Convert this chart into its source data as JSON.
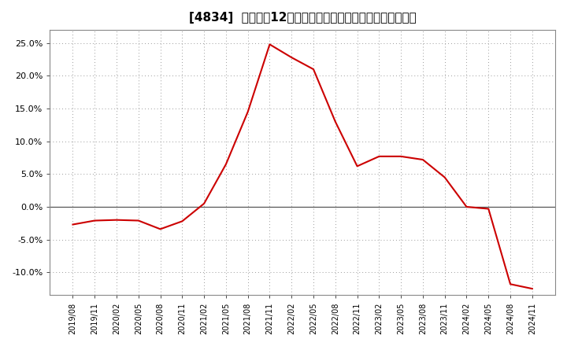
{
  "title": "[4834]  売上高の12か月移動合計の対前年同期増減率の推移",
  "line_color": "#cc0000",
  "background_color": "#ffffff",
  "plot_bg_color": "#ffffff",
  "grid_color": "#999999",
  "zero_line_color": "#555555",
  "ylim": [
    -0.135,
    0.27
  ],
  "yticks": [
    -0.1,
    -0.05,
    0.0,
    0.05,
    0.1,
    0.15,
    0.2,
    0.25
  ],
  "dates": [
    "2019/08",
    "2019/11",
    "2020/02",
    "2020/05",
    "2020/08",
    "2020/11",
    "2021/02",
    "2021/05",
    "2021/08",
    "2021/11",
    "2022/02",
    "2022/05",
    "2022/08",
    "2022/11",
    "2023/02",
    "2023/05",
    "2023/08",
    "2023/11",
    "2024/02",
    "2024/05",
    "2024/08",
    "2024/11"
  ],
  "values": [
    -0.027,
    -0.021,
    -0.02,
    -0.021,
    -0.034,
    -0.022,
    0.005,
    0.065,
    0.145,
    0.248,
    0.228,
    0.21,
    0.13,
    0.062,
    0.077,
    0.077,
    0.072,
    0.045,
    0.0,
    -0.003,
    -0.118,
    -0.125
  ],
  "title_fontsize": 11,
  "tick_fontsize": 8,
  "xtick_fontsize": 7
}
